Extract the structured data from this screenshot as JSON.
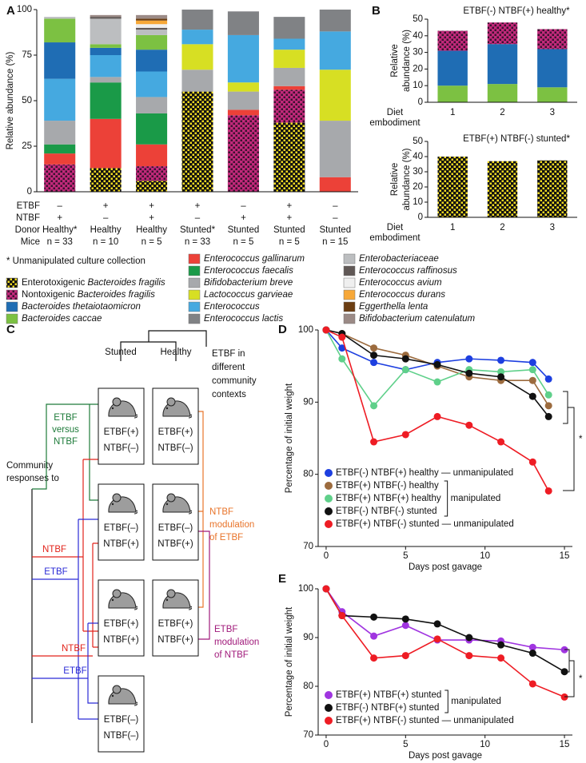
{
  "chart_data": [
    {
      "type": "stacked_bar",
      "panel": "A",
      "ylabel": "Relative abundance (%)",
      "ylim": [
        0,
        100
      ],
      "yticks": [
        0,
        25,
        50,
        75,
        100
      ],
      "row_labels": [
        "ETBF",
        "NTBF",
        "Donor",
        "Mice"
      ],
      "etbf": [
        "–",
        "+",
        "+",
        "+",
        "–",
        "+",
        "–"
      ],
      "ntbf": [
        "+",
        "–",
        "+",
        "–",
        "+",
        "+",
        "–"
      ],
      "categories": [
        "Healthy*",
        "Healthy",
        "Healthy",
        "Stunted*",
        "Stunted",
        "Stunted",
        "Stunted"
      ],
      "mice": [
        "n = 33",
        "n = 10",
        "n = 5",
        "n = 33",
        "n = 5",
        "n = 5",
        "n = 15"
      ],
      "note": "* Unmanipulated culture collection",
      "series": [
        {
          "name": "Enterotoxigenic Bacteroides fragilis",
          "color": "#111111",
          "pattern_color": "#f2dc22",
          "values": [
            0,
            13,
            6,
            55,
            0,
            38,
            0
          ]
        },
        {
          "name": "Nontoxigenic Bacteroides fragilis",
          "color": "#c2297a",
          "pattern_color": "#3b1230",
          "values": [
            15,
            0,
            8,
            0,
            42,
            18,
            0
          ]
        },
        {
          "name": "Bacteroides thetaiotaomicron",
          "color": "#1f6db4",
          "values": [
            20,
            4,
            12,
            0,
            0,
            0,
            0
          ]
        },
        {
          "name": "Bacteroides caccae",
          "color": "#7cc142",
          "values": [
            13,
            2,
            8,
            0,
            0,
            0,
            0
          ]
        },
        {
          "name": "Enterococcus gallinarum",
          "color": "#ec4138",
          "values": [
            6,
            27,
            12,
            0,
            3,
            2,
            8
          ]
        },
        {
          "name": "Enterococcus faecalis",
          "color": "#1a9a48",
          "values": [
            5,
            20,
            17,
            0,
            0,
            0,
            0
          ]
        },
        {
          "name": "Bifidobacterium breve",
          "color": "#a7a9ac",
          "values": [
            13,
            3,
            9,
            12,
            10,
            10,
            31
          ]
        },
        {
          "name": "Lactococcus garvieae",
          "color": "#d7df23",
          "values": [
            0,
            0,
            0,
            14,
            5,
            10,
            28
          ]
        },
        {
          "name": "Enterococcus",
          "color": "#45a9e0",
          "values": [
            23,
            12,
            14,
            8,
            26,
            6,
            21
          ]
        },
        {
          "name": "Enterococcus lactis",
          "color": "#808285",
          "values": [
            0,
            0,
            0,
            11,
            13,
            12,
            12
          ]
        },
        {
          "name": "Enterobacteriaceae",
          "color": "#bcbec0",
          "values": [
            1,
            14,
            3,
            0,
            0,
            0,
            0
          ]
        },
        {
          "name": "Enterococcus raffinosus",
          "color": "#605856",
          "values": [
            0,
            1,
            1,
            0,
            0,
            0,
            0
          ]
        },
        {
          "name": "Enterococcus avium",
          "color": "#efefef",
          "values": [
            0,
            0,
            2,
            0,
            0,
            0,
            0
          ]
        },
        {
          "name": "Enterococcus durans",
          "color": "#f7a838",
          "values": [
            0,
            0,
            2,
            0,
            0,
            0,
            0
          ]
        },
        {
          "name": "Eggerthella lenta",
          "color": "#6b3d12",
          "values": [
            0,
            0,
            1,
            0,
            0,
            0,
            0
          ]
        },
        {
          "name": "Bifidobacterium catenulatum",
          "color": "#9b8a86",
          "values": [
            0,
            1,
            2,
            0,
            0,
            0,
            0
          ]
        }
      ]
    },
    {
      "type": "stacked_bar",
      "panel": "B",
      "title": "ETBF(-) NTBF(+) healthy*",
      "ylabel_lines": [
        "Relative",
        "abundance (%)"
      ],
      "xlabel_lines": [
        "Diet",
        "embodiment"
      ],
      "categories": [
        "1",
        "2",
        "3"
      ],
      "ylim": [
        0,
        50
      ],
      "yticks": [
        0,
        10,
        20,
        30,
        40,
        50
      ],
      "series": [
        {
          "color": "#7cc142",
          "values": [
            10,
            11,
            9
          ]
        },
        {
          "color": "#1f6db4",
          "values": [
            21,
            24,
            23
          ]
        },
        {
          "color": "#c2297a",
          "pattern_color": "#3b1230",
          "values": [
            12,
            13,
            12
          ]
        }
      ]
    },
    {
      "type": "stacked_bar",
      "title": "ETBF(+) NTBF(-) stunted*",
      "ylabel_lines": [
        "Relative",
        "abundance (%)"
      ],
      "xlabel_lines": [
        "Diet",
        "embodiment"
      ],
      "categories": [
        "1",
        "2",
        "3"
      ],
      "ylim": [
        0,
        50
      ],
      "yticks": [
        0,
        10,
        20,
        30,
        40,
        50
      ],
      "series": [
        {
          "color": "#111111",
          "pattern_color": "#f2dc22",
          "values": [
            40,
            37,
            37.5
          ]
        }
      ]
    },
    {
      "type": "line",
      "panel": "D",
      "xlabel": "Days post gavage",
      "ylabel": "Percentage of initial weight",
      "x": [
        0,
        1,
        3,
        5,
        7,
        9,
        11,
        13,
        14
      ],
      "xlim": [
        -0.5,
        15.5
      ],
      "xticks": [
        0,
        5,
        10,
        15
      ],
      "ylim": [
        70,
        100
      ],
      "yticks": [
        70,
        80,
        90,
        100
      ],
      "group_label": "manipulated",
      "annotation": "*",
      "series": [
        {
          "name": "ETBF(-) NTBF(+) healthy — unmanipulated",
          "color": "#1d3fe0",
          "values": [
            100,
            97.5,
            95.5,
            94.5,
            95.5,
            96,
            95.8,
            95.5,
            93.2
          ]
        },
        {
          "name": "ETBF(+) NTBF(-) healthy",
          "color": "#9c6b3e",
          "values": [
            100,
            99.5,
            97.5,
            96.5,
            95,
            93.5,
            93,
            93,
            89.5
          ]
        },
        {
          "name": "ETBF(+) NTBF(+) healthy",
          "color": "#5fd08a",
          "values": [
            100,
            96,
            89.5,
            94.5,
            92.8,
            94.5,
            94.2,
            94.5,
            91
          ]
        },
        {
          "name": "ETBF(-) NTBF(-) stunted",
          "color": "#111111",
          "values": [
            100,
            99.5,
            96.5,
            96,
            95.2,
            94,
            93.5,
            90.8,
            88
          ]
        },
        {
          "name": "ETBF(+) NTBF(-) stunted — unmanipulated",
          "color": "#ee1c24",
          "values": [
            100,
            99,
            84.5,
            85.5,
            88,
            86.8,
            84.5,
            81.7,
            77.7
          ]
        }
      ]
    },
    {
      "type": "line",
      "panel": "E",
      "xlabel": "Days post gavage",
      "ylabel": "Percentage of initial weight",
      "x": [
        0,
        1,
        3,
        5,
        7,
        9,
        11,
        13,
        15
      ],
      "xlim": [
        -0.5,
        15.5
      ],
      "xticks": [
        0,
        5,
        10,
        15
      ],
      "ylim": [
        70,
        100
      ],
      "yticks": [
        70,
        80,
        90,
        100
      ],
      "group_label": "manipulated",
      "annotation": "*",
      "series": [
        {
          "name": "ETBF(+) NTBF(+) stunted",
          "color": "#a035e0",
          "values": [
            100,
            95.3,
            90.3,
            92.5,
            89.5,
            89.5,
            89.3,
            88,
            87.5
          ]
        },
        {
          "name": "ETBF(-) NTBF(+) stunted",
          "color": "#111111",
          "values": [
            100,
            94.5,
            94.2,
            93.8,
            92.8,
            90,
            88.5,
            86.8,
            83
          ]
        },
        {
          "name": "ETBF(+) NTBF(-) stunted — unmanipulated",
          "color": "#ee1c24",
          "values": [
            100,
            94.5,
            85.8,
            86.3,
            89.7,
            86.3,
            85.8,
            80.5,
            77.8
          ]
        }
      ]
    }
  ],
  "diagram": {
    "panel": "C",
    "column_labels": [
      "Stunted",
      "Healthy"
    ],
    "top_label": [
      "ETBF in",
      "different",
      "community",
      "contexts"
    ],
    "left_label": [
      "Community",
      "responses to"
    ],
    "boxes": [
      [
        "ETBF(+)",
        "NTBF(–)"
      ],
      [
        "ETBF(+)",
        "NTBF(–)"
      ],
      [
        "ETBF(–)",
        "NTBF(+)"
      ],
      [
        "ETBF(–)",
        "NTBF(+)"
      ],
      [
        "ETBF(+)",
        "NTBF(+)"
      ],
      [
        "ETBF(+)",
        "NTBF(+)"
      ],
      [
        "ETBF(–)",
        "NTBF(–)"
      ]
    ],
    "versus_label": [
      "ETBF",
      "versus",
      "NTBF"
    ],
    "branch_labels": [
      "NTBF",
      "ETBF",
      "NTBF",
      "ETBF"
    ],
    "ntbf_modulation": [
      "NTBF",
      "modulation",
      "of ETBF"
    ],
    "etbf_modulation": [
      "ETBF",
      "modulation",
      "of NTBF"
    ]
  }
}
